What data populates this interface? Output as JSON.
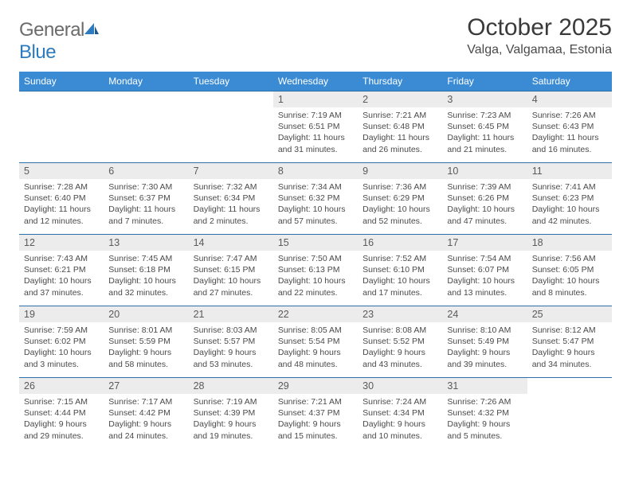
{
  "logo": {
    "text_general": "General",
    "text_blue": "Blue"
  },
  "title": "October 2025",
  "location": "Valga, Valgamaa, Estonia",
  "colors": {
    "header_bg": "#3b8bd4",
    "header_text": "#ffffff",
    "daynum_bg": "#ececec",
    "row_border": "#2e6fa8",
    "body_text": "#4a4a4a",
    "logo_gray": "#6b6b6b",
    "logo_blue": "#2c7bc0"
  },
  "daysOfWeek": [
    "Sunday",
    "Monday",
    "Tuesday",
    "Wednesday",
    "Thursday",
    "Friday",
    "Saturday"
  ],
  "weeks": [
    [
      {
        "empty": true
      },
      {
        "empty": true
      },
      {
        "empty": true
      },
      {
        "num": "1",
        "sunrise": "7:19 AM",
        "sunset": "6:51 PM",
        "daylight": "11 hours and 31 minutes."
      },
      {
        "num": "2",
        "sunrise": "7:21 AM",
        "sunset": "6:48 PM",
        "daylight": "11 hours and 26 minutes."
      },
      {
        "num": "3",
        "sunrise": "7:23 AM",
        "sunset": "6:45 PM",
        "daylight": "11 hours and 21 minutes."
      },
      {
        "num": "4",
        "sunrise": "7:26 AM",
        "sunset": "6:43 PM",
        "daylight": "11 hours and 16 minutes."
      }
    ],
    [
      {
        "num": "5",
        "sunrise": "7:28 AM",
        "sunset": "6:40 PM",
        "daylight": "11 hours and 12 minutes."
      },
      {
        "num": "6",
        "sunrise": "7:30 AM",
        "sunset": "6:37 PM",
        "daylight": "11 hours and 7 minutes."
      },
      {
        "num": "7",
        "sunrise": "7:32 AM",
        "sunset": "6:34 PM",
        "daylight": "11 hours and 2 minutes."
      },
      {
        "num": "8",
        "sunrise": "7:34 AM",
        "sunset": "6:32 PM",
        "daylight": "10 hours and 57 minutes."
      },
      {
        "num": "9",
        "sunrise": "7:36 AM",
        "sunset": "6:29 PM",
        "daylight": "10 hours and 52 minutes."
      },
      {
        "num": "10",
        "sunrise": "7:39 AM",
        "sunset": "6:26 PM",
        "daylight": "10 hours and 47 minutes."
      },
      {
        "num": "11",
        "sunrise": "7:41 AM",
        "sunset": "6:23 PM",
        "daylight": "10 hours and 42 minutes."
      }
    ],
    [
      {
        "num": "12",
        "sunrise": "7:43 AM",
        "sunset": "6:21 PM",
        "daylight": "10 hours and 37 minutes."
      },
      {
        "num": "13",
        "sunrise": "7:45 AM",
        "sunset": "6:18 PM",
        "daylight": "10 hours and 32 minutes."
      },
      {
        "num": "14",
        "sunrise": "7:47 AM",
        "sunset": "6:15 PM",
        "daylight": "10 hours and 27 minutes."
      },
      {
        "num": "15",
        "sunrise": "7:50 AM",
        "sunset": "6:13 PM",
        "daylight": "10 hours and 22 minutes."
      },
      {
        "num": "16",
        "sunrise": "7:52 AM",
        "sunset": "6:10 PM",
        "daylight": "10 hours and 17 minutes."
      },
      {
        "num": "17",
        "sunrise": "7:54 AM",
        "sunset": "6:07 PM",
        "daylight": "10 hours and 13 minutes."
      },
      {
        "num": "18",
        "sunrise": "7:56 AM",
        "sunset": "6:05 PM",
        "daylight": "10 hours and 8 minutes."
      }
    ],
    [
      {
        "num": "19",
        "sunrise": "7:59 AM",
        "sunset": "6:02 PM",
        "daylight": "10 hours and 3 minutes."
      },
      {
        "num": "20",
        "sunrise": "8:01 AM",
        "sunset": "5:59 PM",
        "daylight": "9 hours and 58 minutes."
      },
      {
        "num": "21",
        "sunrise": "8:03 AM",
        "sunset": "5:57 PM",
        "daylight": "9 hours and 53 minutes."
      },
      {
        "num": "22",
        "sunrise": "8:05 AM",
        "sunset": "5:54 PM",
        "daylight": "9 hours and 48 minutes."
      },
      {
        "num": "23",
        "sunrise": "8:08 AM",
        "sunset": "5:52 PM",
        "daylight": "9 hours and 43 minutes."
      },
      {
        "num": "24",
        "sunrise": "8:10 AM",
        "sunset": "5:49 PM",
        "daylight": "9 hours and 39 minutes."
      },
      {
        "num": "25",
        "sunrise": "8:12 AM",
        "sunset": "5:47 PM",
        "daylight": "9 hours and 34 minutes."
      }
    ],
    [
      {
        "num": "26",
        "sunrise": "7:15 AM",
        "sunset": "4:44 PM",
        "daylight": "9 hours and 29 minutes."
      },
      {
        "num": "27",
        "sunrise": "7:17 AM",
        "sunset": "4:42 PM",
        "daylight": "9 hours and 24 minutes."
      },
      {
        "num": "28",
        "sunrise": "7:19 AM",
        "sunset": "4:39 PM",
        "daylight": "9 hours and 19 minutes."
      },
      {
        "num": "29",
        "sunrise": "7:21 AM",
        "sunset": "4:37 PM",
        "daylight": "9 hours and 15 minutes."
      },
      {
        "num": "30",
        "sunrise": "7:24 AM",
        "sunset": "4:34 PM",
        "daylight": "9 hours and 10 minutes."
      },
      {
        "num": "31",
        "sunrise": "7:26 AM",
        "sunset": "4:32 PM",
        "daylight": "9 hours and 5 minutes."
      },
      {
        "empty": true
      }
    ]
  ],
  "labels": {
    "sunrise": "Sunrise:",
    "sunset": "Sunset:",
    "daylight": "Daylight:"
  }
}
